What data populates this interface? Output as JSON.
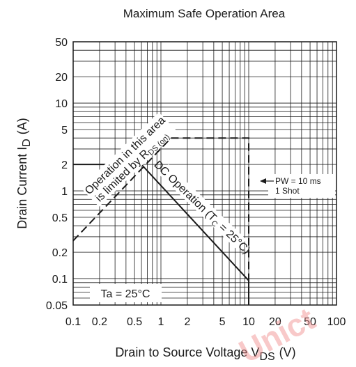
{
  "watermark": {
    "text": "Unict",
    "color": "#f08a8a"
  },
  "chart_data": {
    "type": "line",
    "title": "Maximum Safe Operation Area",
    "xlabel": "Drain to Source Voltage  V",
    "xlabel_sub": "DS",
    "xlabel_unit": "(V)",
    "ylabel": "Drain Current  I",
    "ylabel_sub": "D",
    "ylabel_unit": "(A)",
    "x_scale": "log",
    "y_scale": "log",
    "xlim": [
      0.1,
      100
    ],
    "ylim": [
      0.05,
      50
    ],
    "grid": true,
    "x_ticks": [
      0.1,
      0.2,
      0.5,
      1,
      2,
      5,
      10,
      20,
      50,
      100
    ],
    "x_tick_labels": [
      "0.1",
      "0.2",
      "0.5",
      "1",
      "2",
      "5",
      "10",
      "20",
      "50",
      "100"
    ],
    "y_ticks": [
      0.05,
      0.1,
      0.2,
      0.5,
      1,
      2,
      5,
      10,
      20,
      50
    ],
    "y_tick_labels": [
      "0.05",
      "0.1",
      "0.2",
      "0.5",
      "1",
      "2",
      "5",
      "10",
      "20",
      "50"
    ],
    "series": [
      {
        "style": "dashed",
        "x": [
          0.1,
          1.3
        ],
        "y": [
          0.27,
          4
        ]
      },
      {
        "style": "dashed",
        "x": [
          1.3,
          10,
          10
        ],
        "y": [
          4,
          4,
          0.05
        ]
      },
      {
        "style": "solid",
        "x": [
          0.1,
          0.6,
          10,
          10
        ],
        "y": [
          2,
          2,
          0.095,
          0.05
        ]
      }
    ],
    "annotations": {
      "rds_line1": "Operation in this area",
      "rds_line2_a": "is limited by R",
      "rds_line2_sub": "DS (on)",
      "dc_a": "DC Operation (T",
      "dc_sub": "C",
      "dc_b": " = 25°C)",
      "pw_line1": "PW = 10 ms",
      "pw_line2": "1 Shot",
      "ta": "Ta = 25°C"
    }
  }
}
